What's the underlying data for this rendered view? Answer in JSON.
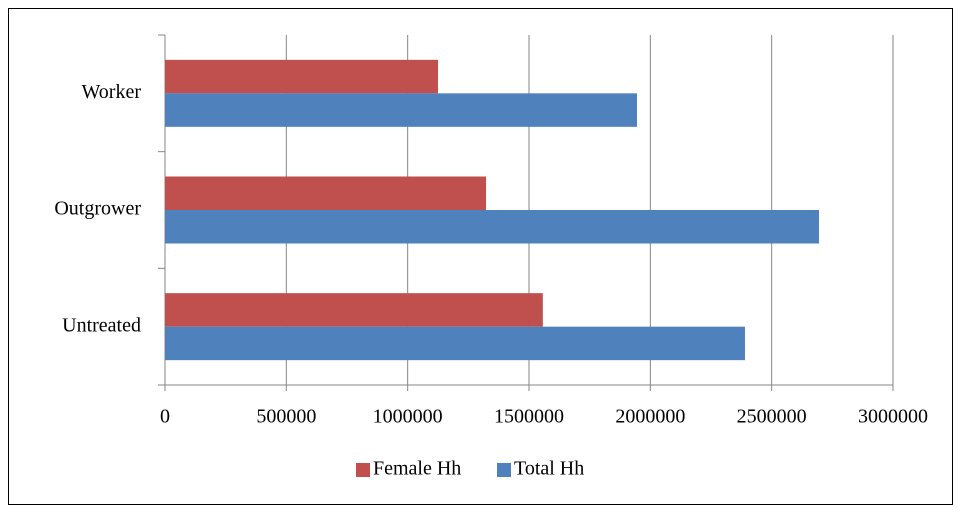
{
  "chart_data": {
    "type": "hbar",
    "categories": [
      "Untreated",
      "Outgrower",
      "Worker"
    ],
    "series": [
      {
        "name": "Female Hh",
        "color": "#c0504d",
        "values": [
          1557000,
          1323000,
          1125000
        ]
      },
      {
        "name": "Total Hh",
        "color": "#4f81bd",
        "values": [
          2390000,
          2695000,
          1945000
        ]
      }
    ],
    "xlim": [
      0,
      3000000
    ],
    "xticks": [
      0,
      500000,
      1000000,
      1500000,
      2000000,
      2500000,
      3000000
    ],
    "grid": true,
    "legend": "bottom"
  }
}
